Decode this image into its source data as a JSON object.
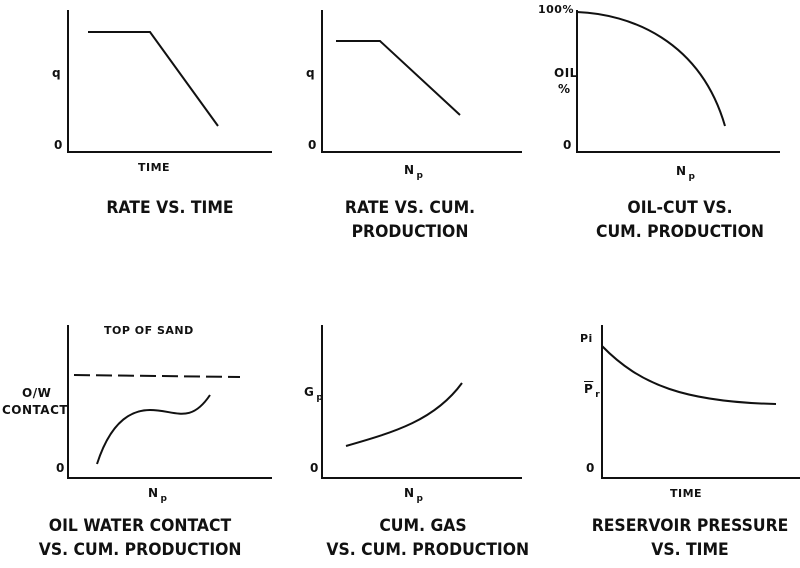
{
  "panels": {
    "rate_time": {
      "y_label": "q",
      "y_zero": "0",
      "x_label": "TIME",
      "title_line1": "RATE VS. TIME"
    },
    "rate_cum": {
      "y_label": "q",
      "y_zero": "0",
      "x_label": "N",
      "x_label_sub": "p",
      "title_line1": "RATE VS. CUM.",
      "title_line2": "PRODUCTION"
    },
    "oil_cut": {
      "y_top": "100%",
      "y_label_1": "OIL",
      "y_label_2": "%",
      "y_zero": "0",
      "x_label": "N",
      "x_label_sub": "p",
      "title_line1": "OIL-CUT VS.",
      "title_line2": "CUM. PRODUCTION"
    },
    "owc": {
      "annotation": "TOP OF SAND",
      "y_label_1": "O/W",
      "y_label_2": "CONTACT",
      "y_zero": "0",
      "x_label": "N",
      "x_label_sub": "p",
      "title_line1": "OIL WATER CONTACT",
      "title_line2": "VS. CUM. PRODUCTION"
    },
    "cum_gas": {
      "y_label": "G",
      "y_label_sub": "p",
      "y_zero": "0",
      "x_label": "N",
      "x_label_sub": "p",
      "title_line1": "CUM. GAS",
      "title_line2": "VS. CUM. PRODUCTION"
    },
    "res_pressure": {
      "y_top": "Pi",
      "y_label": "P",
      "y_label_sub": "r",
      "y_zero": "0",
      "x_label": "TIME",
      "title_line1": "RESERVOIR PRESSURE",
      "title_line2": "VS. TIME"
    }
  }
}
